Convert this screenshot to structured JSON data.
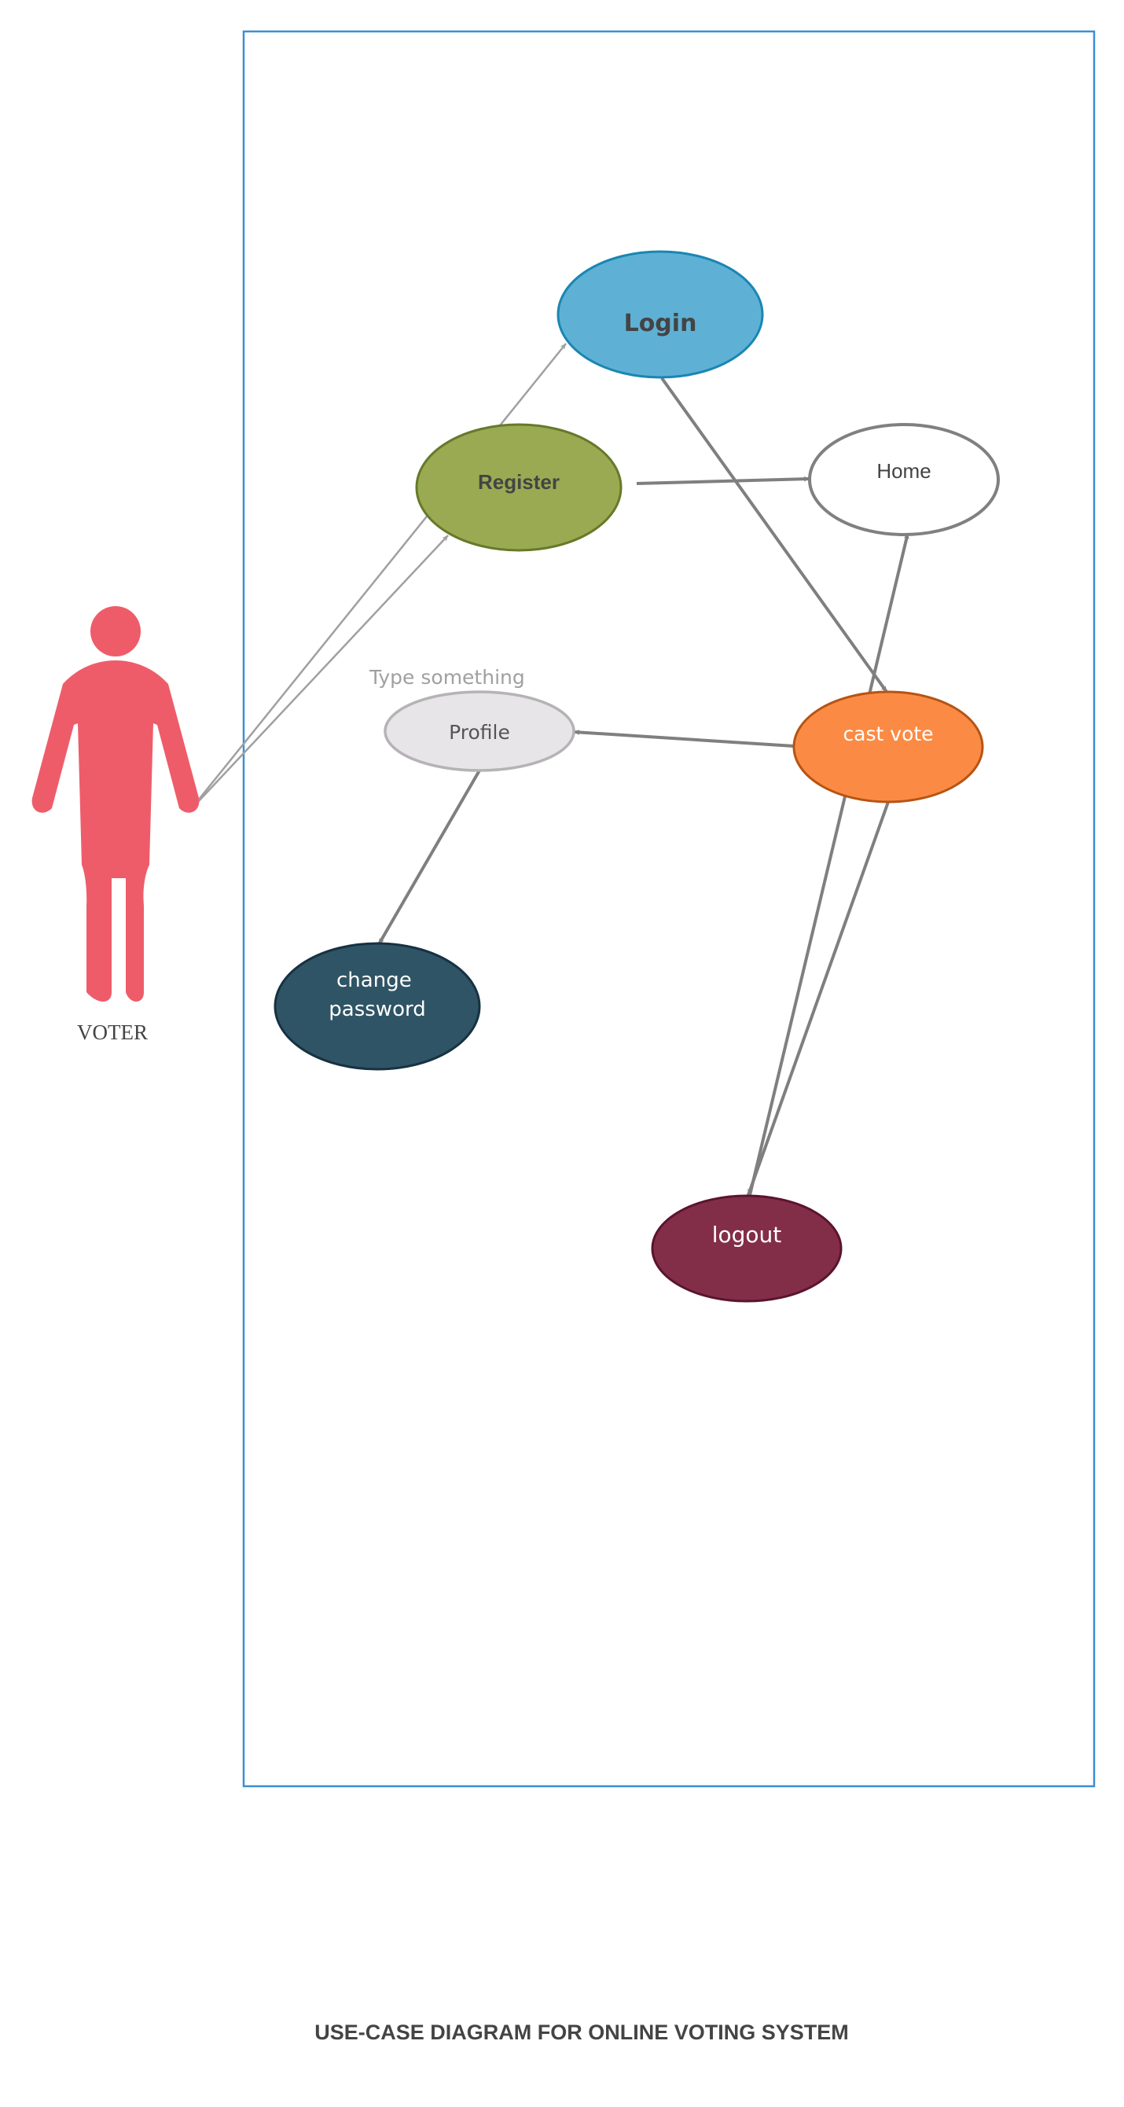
{
  "diagram": {
    "type": "use-case",
    "title": "USE-CASE DIAGRAM FOR ONLINE VOTING SYSTEM",
    "actor": {
      "id": "voter",
      "label": "VOTER",
      "color": "#ee5c6a"
    },
    "placeholder_text": "Type something",
    "use_cases": [
      {
        "id": "login",
        "label": "Login",
        "fill": "#5eb1d5",
        "stroke": "#1a86b3",
        "text_color": "#444444"
      },
      {
        "id": "register",
        "label": "Register",
        "fill": "#9aaa52",
        "stroke": "#657a2a",
        "text_color": "#444444"
      },
      {
        "id": "home",
        "label": "Home",
        "fill": "#ffffff",
        "stroke": "#808080",
        "text_color": "#444444"
      },
      {
        "id": "profile",
        "label": "Profile",
        "fill": "#e8e5e8",
        "stroke": "#b5b3b5",
        "text_color": "#555555"
      },
      {
        "id": "cast-vote",
        "label": "cast vote",
        "fill": "#fb8b44",
        "stroke": "#b65414",
        "text_color": "#ffffff"
      },
      {
        "id": "change-password",
        "label_line1": "change",
        "label_line2": "password",
        "fill": "#2f5465",
        "stroke": "#173242",
        "text_color": "#ffffff"
      },
      {
        "id": "logout",
        "label": "logout",
        "fill": "#832e48",
        "stroke": "#5a1430",
        "text_color": "#ffffff"
      }
    ],
    "connections": [
      {
        "from": "voter",
        "to": "login"
      },
      {
        "from": "voter",
        "to": "register"
      },
      {
        "from": "register",
        "to": "home"
      },
      {
        "from": "login",
        "to": "cast-vote"
      },
      {
        "from": "cast-vote",
        "to": "profile"
      },
      {
        "from": "profile",
        "to": "change-password"
      },
      {
        "from": "cast-vote",
        "to": "logout"
      },
      {
        "from": "logout",
        "to": "home"
      }
    ],
    "colors": {
      "system_boundary": "#3b8fd4",
      "arrow": "#7f7f7f",
      "actor_arrow": "#a0a0a0",
      "title": "#444444",
      "placeholder": "#a0a0a0",
      "actor_label": "#444444"
    }
  }
}
